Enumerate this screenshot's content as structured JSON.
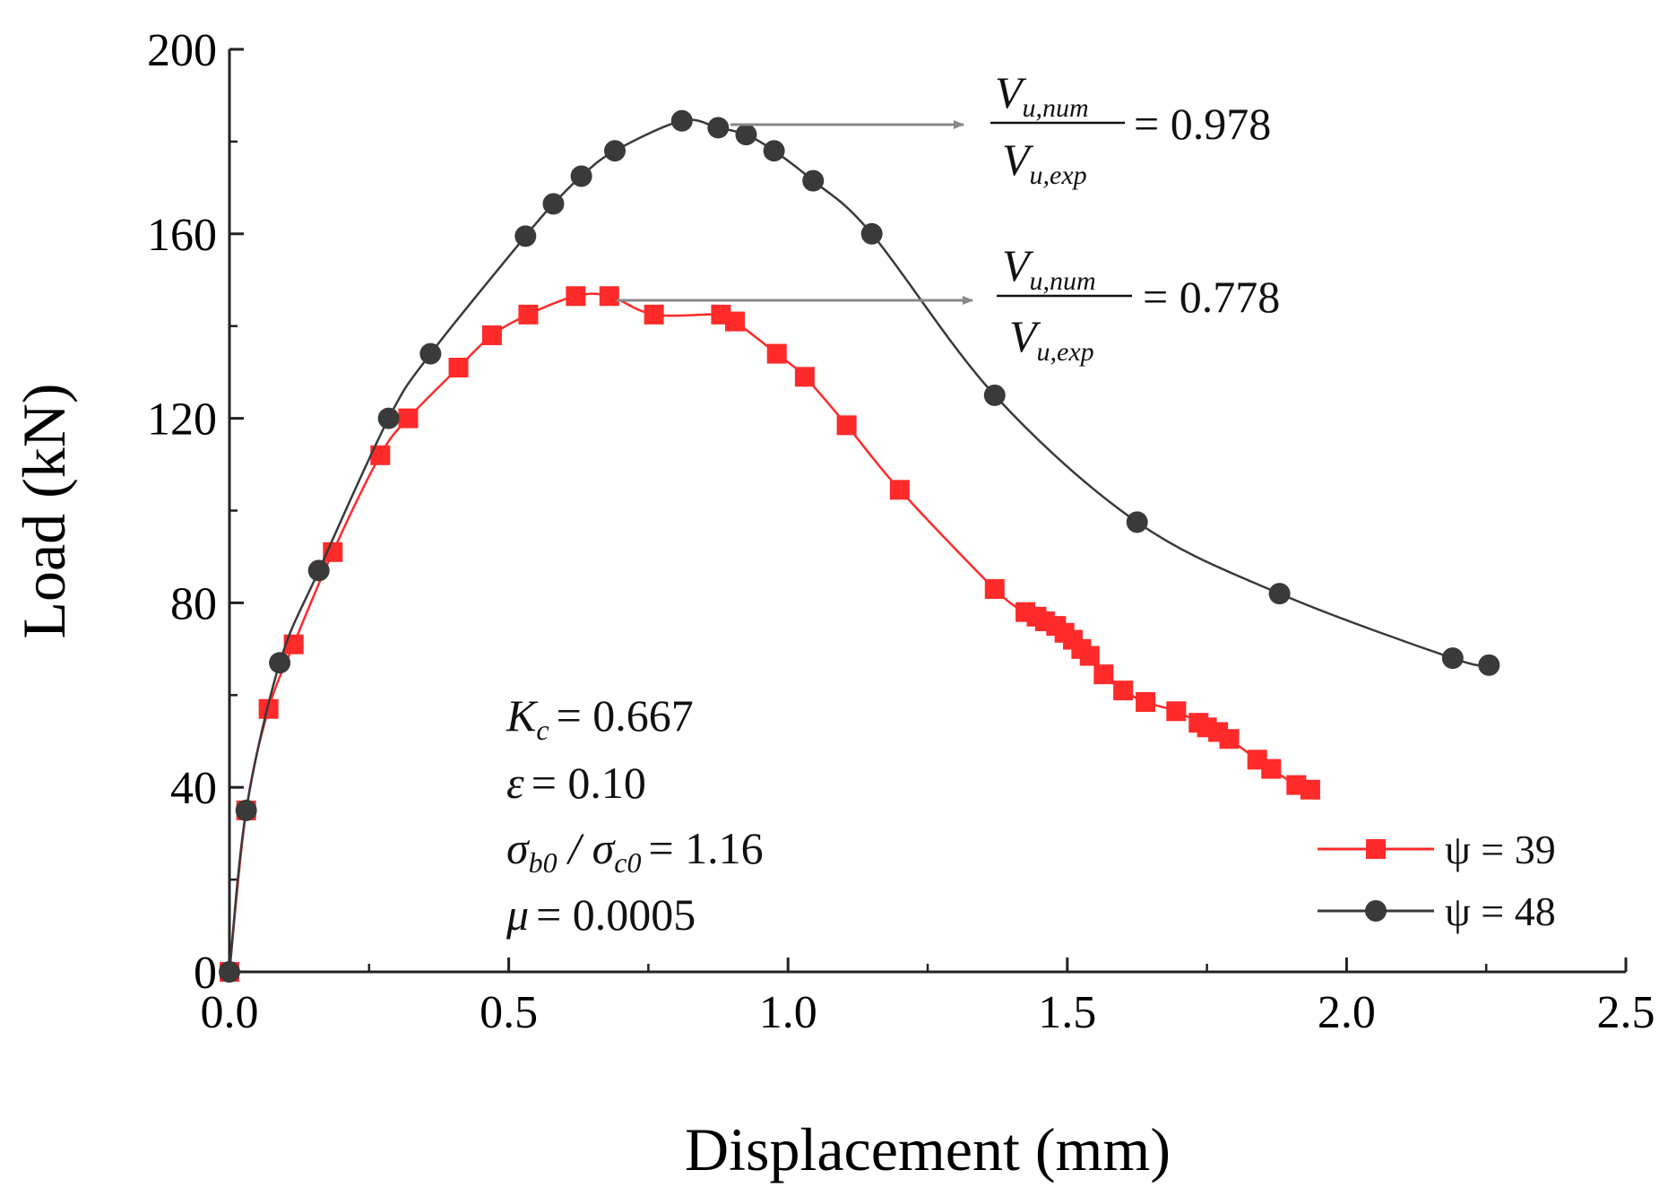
{
  "chart_data": {
    "type": "line",
    "title": "",
    "xlabel": "Displacement (mm)",
    "ylabel": "Load (kN)",
    "xlim": [
      0,
      2.5
    ],
    "ylim": [
      0,
      200
    ],
    "xticks": [
      "0.0",
      "0.5",
      "1.0",
      "1.5",
      "2.0",
      "2.5"
    ],
    "yticks": [
      "0",
      "40",
      "80",
      "120",
      "160",
      "200"
    ],
    "grid": false,
    "legend_position": "bottom-right",
    "series": [
      {
        "name": "ψ = 39",
        "color": "#ff2a2a",
        "marker": "square",
        "x": [
          0.0,
          0.03,
          0.07,
          0.115,
          0.185,
          0.27,
          0.32,
          0.41,
          0.47,
          0.535,
          0.62,
          0.68,
          0.76,
          0.88,
          0.905,
          0.98,
          1.03,
          1.105,
          1.2,
          1.37,
          1.425,
          1.445,
          1.46,
          1.48,
          1.495,
          1.51,
          1.525,
          1.54,
          1.565,
          1.6,
          1.64,
          1.695,
          1.735,
          1.75,
          1.77,
          1.79,
          1.84,
          1.865,
          1.91,
          1.935
        ],
        "y": [
          0,
          35,
          57,
          71,
          91,
          112,
          120,
          131,
          138,
          142.5,
          146.5,
          146.5,
          142.5,
          142.5,
          141,
          134,
          129,
          118.5,
          104.5,
          83,
          78,
          77,
          76,
          75,
          73.5,
          72,
          70,
          68.5,
          64.5,
          61,
          58.5,
          56.5,
          54,
          53,
          52,
          50.5,
          46,
          44,
          40.5,
          39.5
        ]
      },
      {
        "name": "ψ = 48",
        "color": "#3a3a3a",
        "marker": "circle",
        "x": [
          0.0,
          0.03,
          0.09,
          0.16,
          0.285,
          0.36,
          0.53,
          0.58,
          0.63,
          0.69,
          0.81,
          0.875,
          0.925,
          0.975,
          1.045,
          1.15,
          1.37,
          1.625,
          1.88,
          2.19,
          2.255
        ],
        "y": [
          0,
          35,
          67,
          87,
          120,
          134,
          159.5,
          166.5,
          172.5,
          178,
          184.5,
          183,
          181.5,
          178,
          171.5,
          160,
          125,
          97.5,
          82,
          68,
          66.5
        ]
      }
    ],
    "annotations": {
      "ratio_numerator": "V",
      "ratio_numerator_sub": "u,num",
      "ratio_denominator": "V",
      "ratio_denominator_sub": "u,exp",
      "ratio_48_value": "= 0.978",
      "ratio_39_value": "= 0.778",
      "params": [
        {
          "symbol": "K",
          "sub": "c",
          "value": "= 0.667"
        },
        {
          "symbol": "ε",
          "sub": "",
          "value": "= 0.10"
        },
        {
          "symbol": "σ",
          "sub": "b0",
          "mid": " / σ",
          "sub2": "c0",
          "value": "= 1.16"
        },
        {
          "symbol": "μ",
          "sub": "",
          "value": "= 0.0005"
        }
      ]
    }
  }
}
